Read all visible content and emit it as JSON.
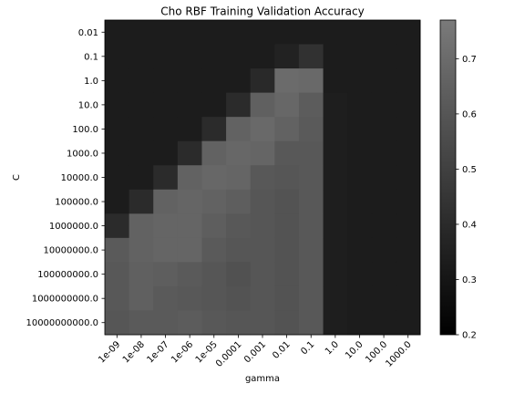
{
  "chart_data": {
    "type": "heatmap",
    "title": "Cho RBF Training Validation Accuracy",
    "xlabel": "gamma",
    "ylabel": "C",
    "x_categories": [
      "1e-09",
      "1e-08",
      "1e-07",
      "1e-06",
      "1e-05",
      "0.0001",
      "0.001",
      "0.01",
      "0.1",
      "1.0",
      "10.0",
      "100.0",
      "1000.0"
    ],
    "y_categories": [
      "0.01",
      "0.1",
      "1.0",
      "10.0",
      "100.0",
      "1000.0",
      "10000.0",
      "100000.0",
      "1000000.0",
      "10000000.0",
      "100000000.0",
      "1000000000.0",
      "10000000000.0"
    ],
    "values": [
      [
        0.33,
        0.33,
        0.33,
        0.33,
        0.33,
        0.33,
        0.33,
        0.33,
        0.33,
        0.33,
        0.33,
        0.33,
        0.33
      ],
      [
        0.33,
        0.33,
        0.33,
        0.33,
        0.33,
        0.33,
        0.33,
        0.36,
        0.43,
        0.33,
        0.33,
        0.33,
        0.33
      ],
      [
        0.33,
        0.33,
        0.33,
        0.33,
        0.33,
        0.33,
        0.39,
        0.7,
        0.69,
        0.33,
        0.33,
        0.33,
        0.33
      ],
      [
        0.33,
        0.33,
        0.33,
        0.33,
        0.33,
        0.4,
        0.65,
        0.68,
        0.63,
        0.34,
        0.33,
        0.33,
        0.33
      ],
      [
        0.33,
        0.33,
        0.33,
        0.33,
        0.4,
        0.66,
        0.69,
        0.66,
        0.62,
        0.34,
        0.33,
        0.33,
        0.33
      ],
      [
        0.33,
        0.33,
        0.33,
        0.4,
        0.66,
        0.68,
        0.67,
        0.61,
        0.61,
        0.34,
        0.33,
        0.33,
        0.33
      ],
      [
        0.33,
        0.33,
        0.4,
        0.66,
        0.68,
        0.67,
        0.61,
        0.6,
        0.61,
        0.34,
        0.33,
        0.33,
        0.33
      ],
      [
        0.33,
        0.4,
        0.66,
        0.67,
        0.66,
        0.64,
        0.6,
        0.59,
        0.61,
        0.34,
        0.33,
        0.33,
        0.33
      ],
      [
        0.4,
        0.66,
        0.67,
        0.67,
        0.64,
        0.61,
        0.6,
        0.59,
        0.61,
        0.34,
        0.33,
        0.33,
        0.33
      ],
      [
        0.62,
        0.66,
        0.67,
        0.67,
        0.62,
        0.6,
        0.6,
        0.59,
        0.61,
        0.34,
        0.33,
        0.33,
        0.33
      ],
      [
        0.61,
        0.65,
        0.64,
        0.62,
        0.6,
        0.58,
        0.6,
        0.59,
        0.61,
        0.34,
        0.33,
        0.33,
        0.33
      ],
      [
        0.61,
        0.65,
        0.62,
        0.61,
        0.6,
        0.59,
        0.6,
        0.59,
        0.61,
        0.34,
        0.33,
        0.33,
        0.33
      ],
      [
        0.6,
        0.62,
        0.62,
        0.63,
        0.61,
        0.6,
        0.6,
        0.59,
        0.61,
        0.34,
        0.33,
        0.33,
        0.33
      ]
    ],
    "colormap": "gray",
    "vmin": 0.2,
    "vmax": 0.77,
    "colorbar_ticks": [
      "0.2",
      "0.3",
      "0.4",
      "0.5",
      "0.6",
      "0.7"
    ],
    "grid": false,
    "legend": "colorbar-right"
  }
}
